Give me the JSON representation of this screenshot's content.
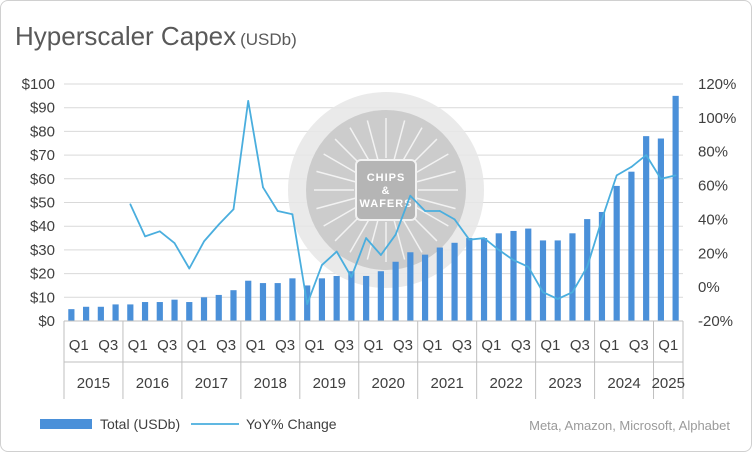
{
  "title": "Hyperscaler Capex",
  "subtitle": "(USDb)",
  "source": "Meta, Amazon, Microsoft, Alphabet",
  "legend": {
    "bar": "Total (USDb)",
    "line": "YoY% Change"
  },
  "watermark": {
    "line1": "CHIPS",
    "line2": "&",
    "line3": "WAFERS"
  },
  "colors": {
    "bar": "#4a90d9",
    "line": "#4aaede",
    "grid": "#d9d9d9"
  },
  "chart_data": {
    "type": "bar+line",
    "title": "Hyperscaler Capex (USDb)",
    "left_axis": {
      "min": 0,
      "max": 100,
      "ticks": [
        "$0",
        "$10",
        "$20",
        "$30",
        "$40",
        "$50",
        "$60",
        "$70",
        "$80",
        "$90",
        "$100"
      ]
    },
    "right_axis": {
      "min": -20,
      "max": 120,
      "ticks": [
        "-20%",
        "0%",
        "20%",
        "40%",
        "60%",
        "80%",
        "100%",
        "120%"
      ]
    },
    "quarter_labels": [
      "Q1",
      "",
      "Q3",
      "",
      "Q1",
      "",
      "Q3",
      "",
      "Q1",
      "",
      "Q3",
      "",
      "Q1",
      "",
      "Q3",
      "",
      "Q1",
      "",
      "Q3",
      "",
      "Q1",
      "",
      "Q3",
      "",
      "Q1",
      "",
      "Q3",
      "",
      "Q1",
      "",
      "Q3",
      "",
      "Q1",
      "",
      "Q3",
      "",
      "Q1",
      "",
      "Q3",
      "",
      "Q1",
      ""
    ],
    "years": [
      "2015",
      "2016",
      "2017",
      "2018",
      "2019",
      "2020",
      "2021",
      "2022",
      "2023",
      "2024",
      "2025"
    ],
    "series": [
      {
        "name": "Total (USDb)",
        "axis": "left",
        "values": [
          5,
          6,
          6,
          7,
          7,
          8,
          8,
          9,
          8,
          10,
          11,
          13,
          17,
          16,
          16,
          18,
          15,
          18,
          19,
          21,
          19,
          21,
          25,
          29,
          28,
          31,
          33,
          35,
          35,
          37,
          38,
          39,
          34,
          34,
          37,
          43,
          46,
          57,
          63,
          78,
          77,
          95
        ]
      },
      {
        "name": "YoY% Change",
        "axis": "right",
        "values": [
          null,
          null,
          null,
          null,
          49,
          30,
          33,
          26,
          11,
          27,
          37,
          46,
          110,
          59,
          45,
          43,
          -10,
          13,
          21,
          6,
          29,
          19,
          31,
          54,
          45,
          45,
          40,
          28,
          29,
          22,
          16,
          12,
          -3,
          -7,
          -3,
          12,
          40,
          66,
          71,
          78,
          64,
          66
        ]
      }
    ]
  }
}
